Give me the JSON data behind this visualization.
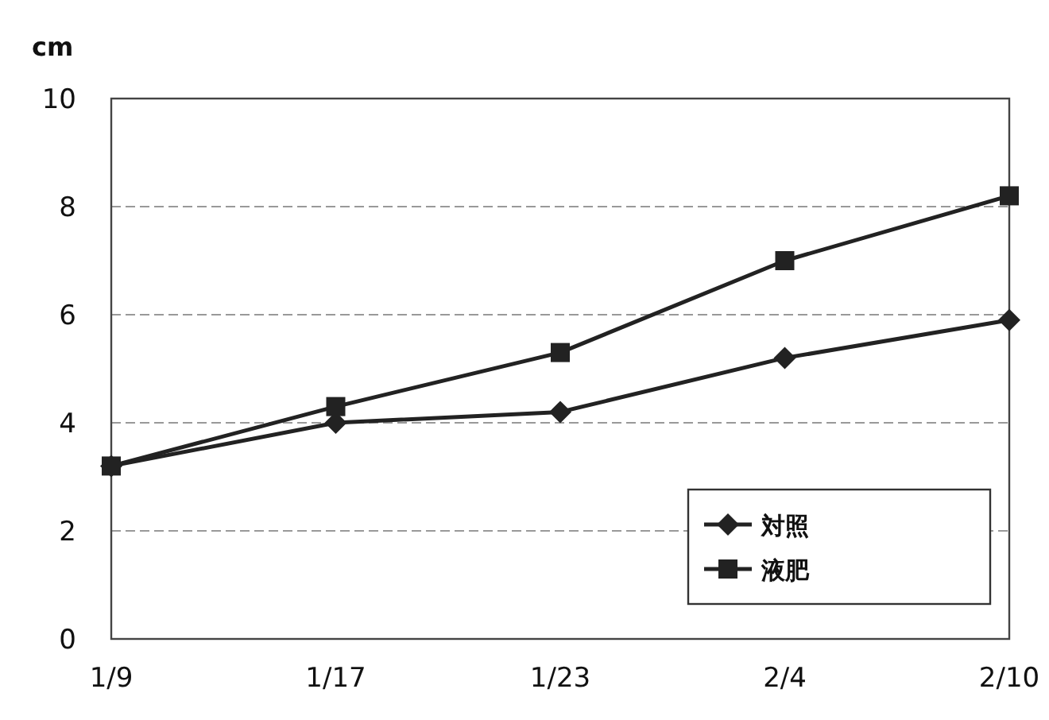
{
  "chart_data": {
    "type": "line",
    "ylabel": "cm",
    "categories": [
      "1/9",
      "1/17",
      "1/23",
      "2/4",
      "2/10"
    ],
    "series": [
      {
        "name": "対照",
        "color": "#222222",
        "marker": "diamond",
        "values": [
          3.2,
          4.0,
          4.2,
          5.2,
          5.9
        ]
      },
      {
        "name": "液肥",
        "color": "#222222",
        "marker": "square",
        "values": [
          3.2,
          4.3,
          5.3,
          7.0,
          8.2
        ]
      }
    ],
    "ylim": [
      0,
      10
    ],
    "yticks": [
      0,
      2,
      4,
      6,
      8,
      10
    ],
    "grid": "y",
    "legend": "bottom right",
    "line_style": "solid"
  }
}
